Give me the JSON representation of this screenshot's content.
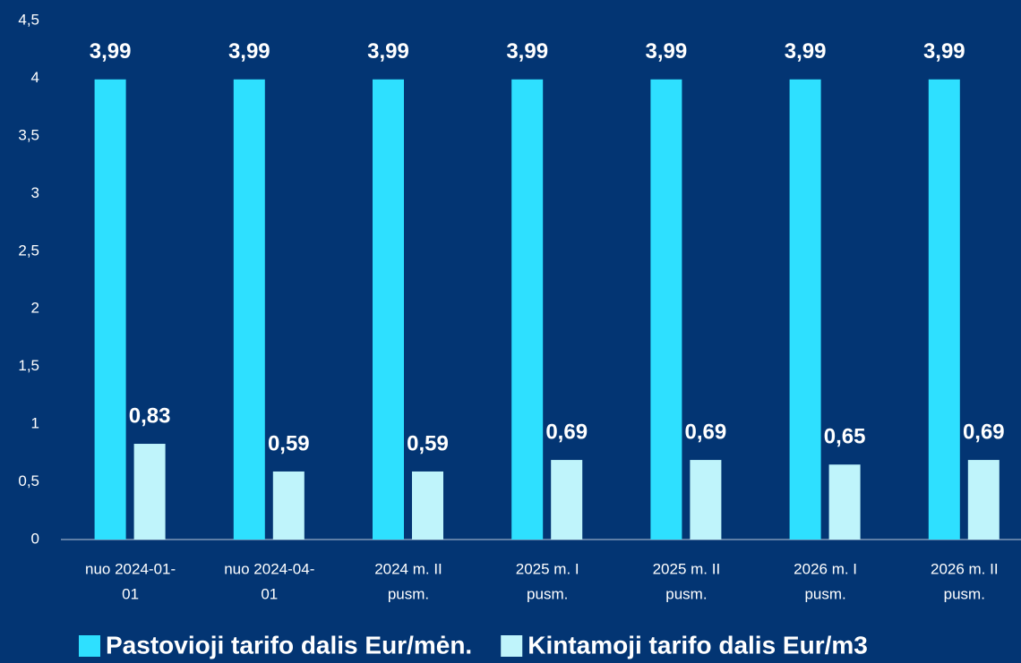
{
  "chart_data": {
    "type": "bar",
    "categories": [
      [
        "nuo 2024-01-",
        "01"
      ],
      [
        "nuo 2024-04-",
        "01"
      ],
      [
        "2024 m. II",
        "pusm."
      ],
      [
        "2025 m. I",
        "pusm."
      ],
      [
        "2025 m. II",
        "pusm."
      ],
      [
        "2026 m. I",
        "pusm."
      ],
      [
        "2026 m. II",
        "pusm."
      ]
    ],
    "series": [
      {
        "name": "Pastovioji tarifo dalis Eur/mėn.",
        "color": "#2ee0ff",
        "values": [
          3.99,
          3.99,
          3.99,
          3.99,
          3.99,
          3.99,
          3.99
        ],
        "value_labels": [
          "3,99",
          "3,99",
          "3,99",
          "3,99",
          "3,99",
          "3,99",
          "3,99"
        ]
      },
      {
        "name": "Kintamoji tarifo dalis Eur/m3",
        "color": "#bff4fb",
        "values": [
          0.83,
          0.59,
          0.59,
          0.69,
          0.69,
          0.65,
          0.69
        ],
        "value_labels": [
          "0,83",
          "0,59",
          "0,59",
          "0,69",
          "0,69",
          "0,65",
          "0,69"
        ]
      }
    ],
    "ylim": [
      0,
      4.5
    ],
    "yticks": [
      0,
      {
        "value": 0.5,
        "label": "0,5"
      },
      1,
      {
        "value": 1.5,
        "label": "1,5"
      },
      2,
      {
        "value": 2.5,
        "label": "2,5"
      },
      3,
      {
        "value": 3.5,
        "label": "3,5"
      },
      4,
      {
        "value": 4.5,
        "label": "4,5"
      }
    ],
    "grid": false,
    "legend": "bottom"
  }
}
